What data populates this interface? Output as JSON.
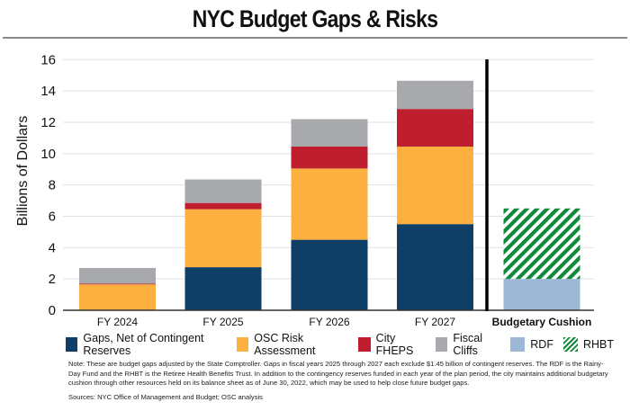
{
  "header": {
    "title": "NYC Budget Gaps & Risks"
  },
  "chart_data": {
    "type": "bar",
    "stacked": true,
    "title": "NYC Budget Gaps & Risks",
    "xlabel": "",
    "ylabel": "Billions of Dollars",
    "ylim": [
      0,
      16
    ],
    "yticks": [
      0,
      2,
      4,
      6,
      8,
      10,
      12,
      14,
      16
    ],
    "grid": true,
    "categories": [
      "FY 2024",
      "FY 2025",
      "FY 2026",
      "FY 2027",
      "Budgetary Cushion"
    ],
    "divider_before": "Budgetary Cushion",
    "series": [
      {
        "name": "Gaps, Net of Contingent Reserves",
        "color": "#0f3e66",
        "values": [
          0,
          2.75,
          4.5,
          5.5,
          0
        ]
      },
      {
        "name": "OSC Risk Assessment",
        "color": "#fbb040",
        "values": [
          1.65,
          3.7,
          4.55,
          4.95,
          0
        ]
      },
      {
        "name": "City FHEPS",
        "color": "#be1e2d",
        "values": [
          0.05,
          0.4,
          1.4,
          2.4,
          0
        ]
      },
      {
        "name": "Fiscal Cliffs",
        "color": "#a7a9ac",
        "values": [
          1.0,
          1.5,
          1.75,
          1.8,
          0
        ]
      },
      {
        "name": "RDF",
        "color": "#9db7d6",
        "values": [
          0,
          0,
          0,
          0,
          2.0
        ]
      },
      {
        "name": "RHBT",
        "color": "#0f8a3a",
        "pattern": "hatch",
        "values": [
          0,
          0,
          0,
          0,
          4.5
        ]
      }
    ],
    "legend_position": "bottom"
  },
  "footer": {
    "note": "Note: These are budget gaps adjusted by the State Comptroller. Gaps in fiscal years 2025 through 2027 each exclude $1.45 billion of contingent reserves.  The RDF is the Rainy-Day Fund and the RHBT is the Retiree Health Benefits Trust. In addition to the contingency reserves funded in each year of the plan period, the city maintains additional budgetary cushion through other resources held on its balance sheet as of June 30, 2022, which may be used to help close future budget gaps.",
    "sources": "Sources: NYC Office of Management and Budget; OSC analysis"
  }
}
